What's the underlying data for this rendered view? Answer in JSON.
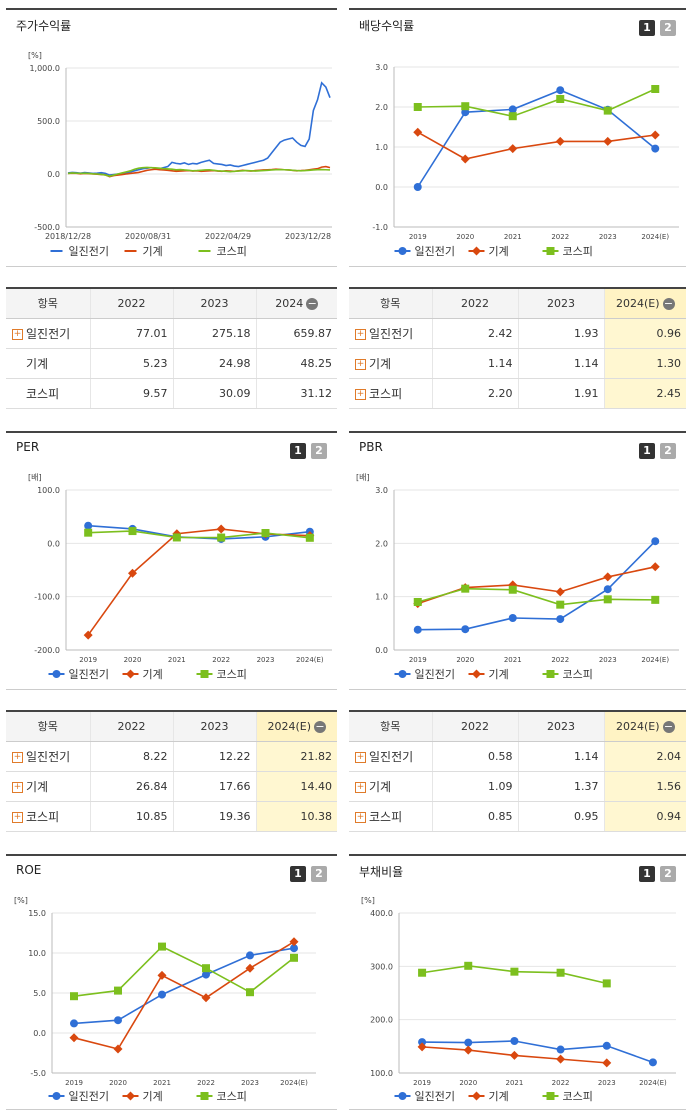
{
  "colors": {
    "s0": "#2f6fd6",
    "s1": "#d9480f",
    "s2": "#7cbf1e"
  },
  "legend": [
    "일진전기",
    "기계",
    "코스피"
  ],
  "charts": [
    {
      "id": "stock",
      "title": "주가수익률",
      "buttons": [],
      "chart_data": {
        "type": "line",
        "unit": "[%]",
        "ylim": [
          -500,
          1000
        ],
        "yticks": [
          "1,000.0",
          "500.0",
          "0.0",
          "-500.0"
        ],
        "ytick_values": [
          1000,
          500,
          0,
          -500
        ],
        "xticks": [
          "2018/12/28",
          "2020/08/31",
          "2022/04/29",
          "2023/12/28"
        ],
        "n_points": 64,
        "series": [
          {
            "name": "일진전기",
            "values": [
              10,
              15,
              12,
              8,
              14,
              10,
              5,
              8,
              12,
              6,
              -10,
              -5,
              0,
              5,
              10,
              20,
              30,
              40,
              50,
              55,
              60,
              55,
              50,
              60,
              70,
              110,
              100,
              95,
              105,
              90,
              100,
              95,
              110,
              120,
              130,
              100,
              95,
              90,
              80,
              85,
              75,
              70,
              80,
              90,
              100,
              110,
              120,
              130,
              150,
              200,
              250,
              300,
              320,
              330,
              340,
              300,
              270,
              260,
              330,
              600,
              700,
              860,
              820,
              720
            ]
          },
          {
            "name": "기계",
            "values": [
              5,
              8,
              6,
              2,
              5,
              3,
              0,
              -2,
              -5,
              -8,
              -25,
              -15,
              -10,
              -5,
              0,
              5,
              10,
              15,
              25,
              35,
              40,
              45,
              40,
              38,
              35,
              30,
              25,
              28,
              30,
              32,
              28,
              30,
              25,
              28,
              30,
              32,
              28,
              25,
              30,
              28,
              25,
              30,
              35,
              30,
              28,
              32,
              35,
              38,
              40,
              42,
              45,
              43,
              40,
              38,
              35,
              30,
              32,
              35,
              40,
              45,
              50,
              65,
              70,
              60
            ]
          },
          {
            "name": "코스피",
            "values": [
              5,
              10,
              8,
              6,
              8,
              5,
              2,
              0,
              -3,
              -10,
              -20,
              -10,
              0,
              10,
              20,
              30,
              45,
              55,
              60,
              62,
              60,
              58,
              55,
              50,
              48,
              45,
              40,
              42,
              38,
              35,
              30,
              32,
              35,
              38,
              40,
              35,
              30,
              28,
              25,
              22,
              25,
              28,
              30,
              32,
              30,
              28,
              30,
              32,
              35,
              38,
              40,
              42,
              40,
              38,
              35,
              32,
              30,
              32,
              35,
              38,
              40,
              42,
              40,
              38
            ]
          }
        ]
      }
    },
    {
      "id": "dividend",
      "title": "배당수익률",
      "buttons": [
        "1",
        "2"
      ],
      "chart_data": {
        "type": "line",
        "unit": "",
        "ylim": [
          -1,
          3
        ],
        "yticks": [
          "3.0",
          "2.0",
          "1.0",
          "0.0",
          "-1.0"
        ],
        "ytick_values": [
          3,
          2,
          1,
          0,
          -1
        ],
        "categories": [
          "2019",
          "2020",
          "2021",
          "2022",
          "2023",
          "2024(E)"
        ],
        "series": [
          {
            "name": "일진전기",
            "values": [
              0.0,
              1.87,
              1.94,
              2.42,
              1.93,
              0.96
            ]
          },
          {
            "name": "기계",
            "values": [
              1.37,
              0.7,
              0.96,
              1.14,
              1.14,
              1.3
            ]
          },
          {
            "name": "코스피",
            "values": [
              2.0,
              2.02,
              1.77,
              2.2,
              1.91,
              2.45
            ]
          }
        ]
      }
    },
    {
      "id": "per",
      "title": "PER",
      "buttons": [
        "1",
        "2"
      ],
      "chart_data": {
        "type": "line",
        "unit": "[배]",
        "ylim": [
          -200,
          100
        ],
        "yticks": [
          "100.0",
          "0.0",
          "-100.0",
          "-200.0"
        ],
        "ytick_values": [
          100,
          0,
          -100,
          -200
        ],
        "categories": [
          "2019",
          "2020",
          "2021",
          "2022",
          "2023",
          "2024(E)"
        ],
        "series": [
          {
            "name": "일진전기",
            "values": [
              33.0,
              27.0,
              12.0,
              8.22,
              12.22,
              21.82
            ]
          },
          {
            "name": "기계",
            "values": [
              -172.0,
              -56.0,
              18.0,
              26.84,
              17.66,
              14.4
            ]
          },
          {
            "name": "코스피",
            "values": [
              20.0,
              23.0,
              11.0,
              10.85,
              19.36,
              10.38
            ]
          }
        ]
      }
    },
    {
      "id": "pbr",
      "title": "PBR",
      "buttons": [
        "1",
        "2"
      ],
      "chart_data": {
        "type": "line",
        "unit": "[배]",
        "ylim": [
          0,
          3
        ],
        "yticks": [
          "3.0",
          "2.0",
          "1.0",
          "0.0"
        ],
        "ytick_values": [
          3,
          2,
          1,
          0
        ],
        "categories": [
          "2019",
          "2020",
          "2021",
          "2022",
          "2023",
          "2024(E)"
        ],
        "series": [
          {
            "name": "일진전기",
            "values": [
              0.38,
              0.39,
              0.6,
              0.58,
              1.14,
              2.04
            ]
          },
          {
            "name": "기계",
            "values": [
              0.87,
              1.17,
              1.22,
              1.09,
              1.37,
              1.56
            ]
          },
          {
            "name": "코스피",
            "values": [
              0.9,
              1.15,
              1.13,
              0.85,
              0.95,
              0.94
            ]
          }
        ]
      }
    },
    {
      "id": "roe",
      "title": "ROE",
      "buttons": [
        "1",
        "2"
      ],
      "chart_data": {
        "type": "line",
        "unit": "[%]",
        "ylim": [
          -5,
          15
        ],
        "yticks": [
          "15.0",
          "10.0",
          "5.0",
          "0.0",
          "-5.0"
        ],
        "ytick_values": [
          15,
          10,
          5,
          0,
          -5
        ],
        "categories": [
          "2019",
          "2020",
          "2021",
          "2022",
          "2023",
          "2024(E)"
        ],
        "series": [
          {
            "name": "일진전기",
            "values": [
              1.2,
              1.6,
              4.8,
              7.3,
              9.7,
              10.6
            ]
          },
          {
            "name": "기계",
            "values": [
              -0.6,
              -2.0,
              7.2,
              4.4,
              8.1,
              11.4
            ]
          },
          {
            "name": "코스피",
            "values": [
              4.6,
              5.3,
              10.8,
              8.1,
              5.1,
              9.4
            ]
          }
        ]
      }
    },
    {
      "id": "debt",
      "title": "부채비율",
      "buttons": [
        "1",
        "2"
      ],
      "chart_data": {
        "type": "line",
        "unit": "[%]",
        "ylim": [
          100,
          400
        ],
        "yticks": [
          "400.0",
          "300.0",
          "200.0",
          "100.0"
        ],
        "ytick_values": [
          400,
          300,
          200,
          100
        ],
        "categories": [
          "2019",
          "2020",
          "2021",
          "2022",
          "2023",
          "2024(E)"
        ],
        "series": [
          {
            "name": "일진전기",
            "values": [
              158,
              157,
              160,
              144,
              151,
              120
            ]
          },
          {
            "name": "기계",
            "values": [
              149,
              143,
              133,
              126,
              119,
              null
            ]
          },
          {
            "name": "코스피",
            "values": [
              288,
              301,
              290,
              288,
              268,
              null
            ]
          }
        ]
      }
    }
  ],
  "tables": [
    {
      "id": "t_stock",
      "header": [
        "항목",
        "2022",
        "2023",
        "2024"
      ],
      "last_estimate": false,
      "rows": [
        {
          "label": "일진전기",
          "plus": true,
          "values": [
            "77.01",
            "275.18",
            "659.87"
          ]
        },
        {
          "label": "기계",
          "plus": false,
          "values": [
            "5.23",
            "24.98",
            "48.25"
          ]
        },
        {
          "label": "코스피",
          "plus": false,
          "values": [
            "9.57",
            "30.09",
            "31.12"
          ]
        }
      ]
    },
    {
      "id": "t_div",
      "header": [
        "항목",
        "2022",
        "2023",
        "2024(E)"
      ],
      "last_estimate": true,
      "rows": [
        {
          "label": "일진전기",
          "plus": true,
          "values": [
            "2.42",
            "1.93",
            "0.96"
          ]
        },
        {
          "label": "기계",
          "plus": true,
          "values": [
            "1.14",
            "1.14",
            "1.30"
          ]
        },
        {
          "label": "코스피",
          "plus": true,
          "values": [
            "2.20",
            "1.91",
            "2.45"
          ]
        }
      ]
    },
    {
      "id": "t_per",
      "header": [
        "항목",
        "2022",
        "2023",
        "2024(E)"
      ],
      "last_estimate": true,
      "rows": [
        {
          "label": "일진전기",
          "plus": true,
          "values": [
            "8.22",
            "12.22",
            "21.82"
          ]
        },
        {
          "label": "기계",
          "plus": true,
          "values": [
            "26.84",
            "17.66",
            "14.40"
          ]
        },
        {
          "label": "코스피",
          "plus": true,
          "values": [
            "10.85",
            "19.36",
            "10.38"
          ]
        }
      ]
    },
    {
      "id": "t_pbr",
      "header": [
        "항목",
        "2022",
        "2023",
        "2024(E)"
      ],
      "last_estimate": true,
      "rows": [
        {
          "label": "일진전기",
          "plus": true,
          "values": [
            "0.58",
            "1.14",
            "2.04"
          ]
        },
        {
          "label": "기계",
          "plus": true,
          "values": [
            "1.09",
            "1.37",
            "1.56"
          ]
        },
        {
          "label": "코스피",
          "plus": true,
          "values": [
            "0.85",
            "0.95",
            "0.94"
          ]
        }
      ]
    }
  ]
}
